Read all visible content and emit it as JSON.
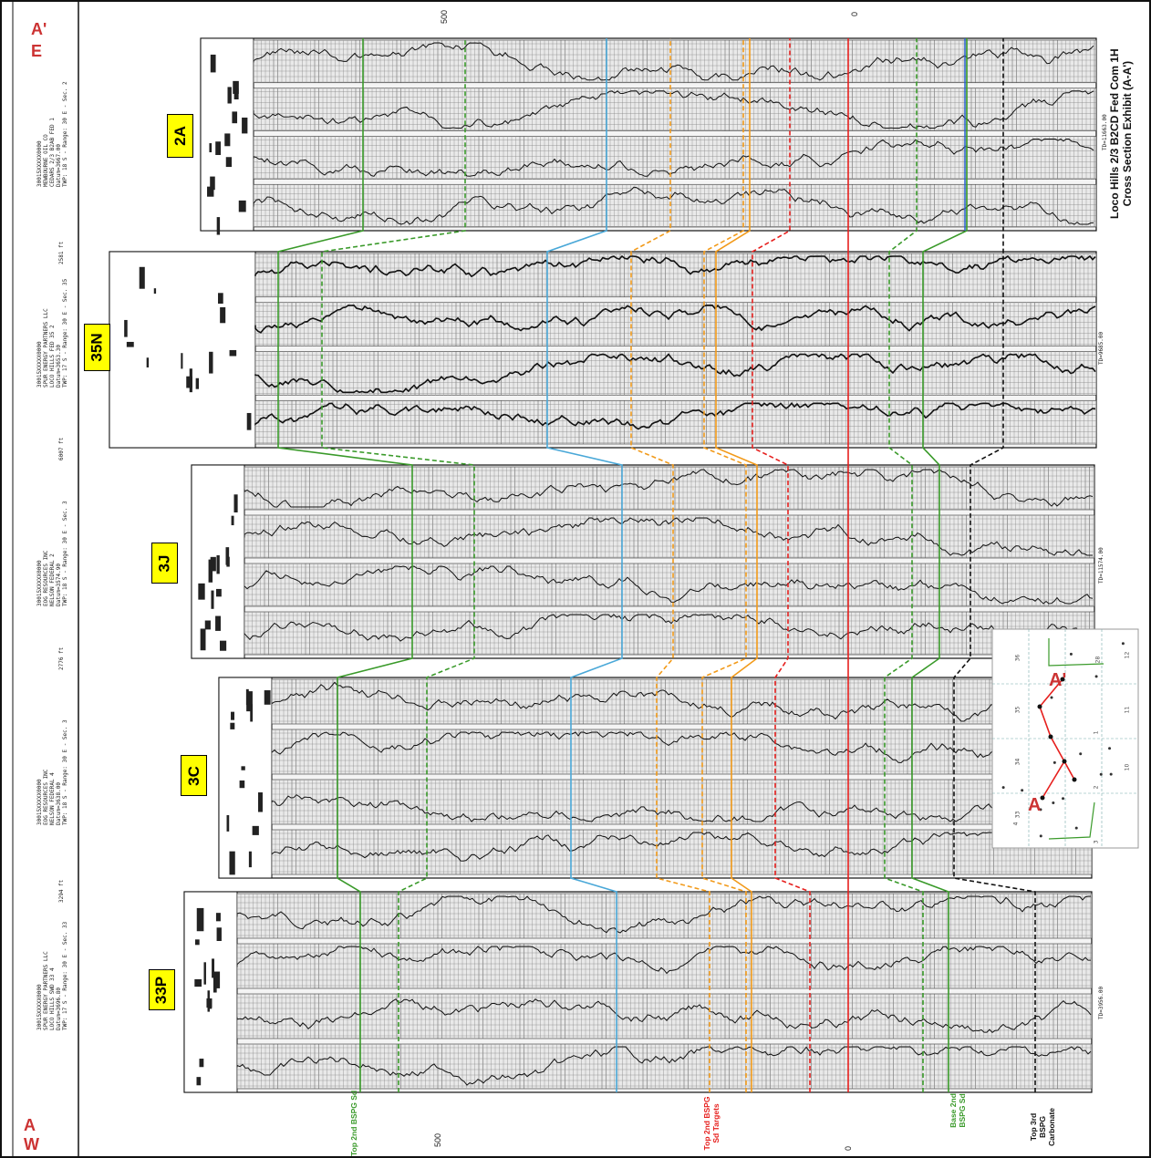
{
  "title": {
    "line1": "Loco Hills 2/3 B2CD Fed Com 1H",
    "line2": "Cross Section Exhibit (A-A')"
  },
  "ends": {
    "left_top": "A",
    "left_bottom": "W",
    "right_top": "A'",
    "right_bottom": "E"
  },
  "depth_scale": {
    "top_left": "500",
    "top_right": "0",
    "bottom_left": "500",
    "bottom_right": "0"
  },
  "wells": [
    {
      "label": "33P",
      "operator": "SPUR ENERGY PARTNERS LLC",
      "lease": "LOCO HILLS SWD 33 4",
      "datum": "Datum=3696.80",
      "api": "30015XXXXX0000",
      "location": "TWP: 17 S - Range: 30 E - Sec. 33",
      "spacing": "3294 ft",
      "td": "TD=3956.00"
    },
    {
      "label": "3C",
      "operator": "EOG RESOURCES INC",
      "lease": "NELSON FEDERAL 4",
      "datum": "Datum=3638.00",
      "api": "30015XXXXX0000",
      "location": "TWP: 18 S - Range: 30 E - Sec. 3",
      "spacing": "2776 ft",
      "td": ""
    },
    {
      "label": "3J",
      "operator": "EOG RESOURCES INC",
      "lease": "NELSON FEDERAL 2",
      "datum": "Datum=3574.90",
      "api": "30015XXXXX0000",
      "location": "TWP: 18 S - Range: 30 E - Sec. 3",
      "spacing": "6007 ft",
      "td": "TD=11574.00"
    },
    {
      "label": "35N",
      "operator": "SPUR ENERGY PARTNERS LLC",
      "lease": "LOCO HILLS FED 35 2",
      "datum": "Datum=3653.30",
      "api": "30015XXXXX0000",
      "location": "TWP: 17 S - Range: 30 E - Sec. 35",
      "spacing": "2581 ft",
      "td": "TD=9685.00"
    },
    {
      "label": "2A",
      "operator": "MEWBOURNE OIL CO",
      "lease": "CEDARS 2/3 B2AB FED 1",
      "datum": "Datum=3667.00",
      "api": "30015XXXXX0000",
      "location": "TWP: 18 S - Range: 30 E - Sec. 2",
      "spacing": "",
      "td": "TD=11663.00"
    }
  ],
  "formations": [
    {
      "name": "Top 2nd BSPG Sd",
      "color": "#3a9a2a"
    },
    {
      "name": "Top 2nd BSPG Sd Targets",
      "color": "#e6201e"
    },
    {
      "name": "Base 2nd BSPG Sd",
      "color": "#3a9a2a"
    },
    {
      "name": "Top 3rd BSPG Carbonate",
      "color": "#111111"
    }
  ],
  "map": {
    "label_a": "A",
    "label_a_prime": "A'",
    "sections": [
      "33",
      "34",
      "35",
      "36",
      "3",
      "2",
      "1",
      "12",
      "11",
      "10",
      "4",
      "28"
    ]
  },
  "colors": {
    "label_fill": "#ffff00",
    "green": "#3a9a2a",
    "red": "#e6201e",
    "orange": "#f29a1a",
    "cyan": "#4aa8d8",
    "blue": "#2a60d0",
    "black": "#111111"
  }
}
